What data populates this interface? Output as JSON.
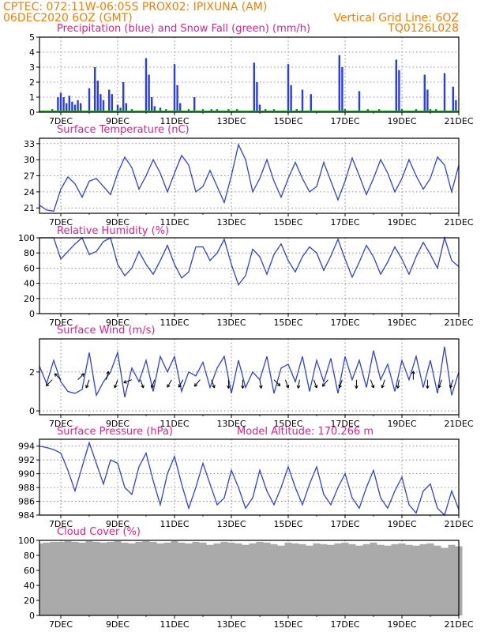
{
  "header": {
    "line1_left": "CPTEC:  072:11W-06:05S  PROX02: IPIXUNA (AM)",
    "line2_left": "06DEC2020 6OZ (GMT)",
    "line2_right": "Vertical Grid Line: 6OZ",
    "line3_right": "TQ0126L028"
  },
  "colors": {
    "header": "#f08000",
    "title": "#e0208a",
    "line": "#3040dd",
    "precip": "#2a3cf0",
    "snow": "#20b020",
    "cloud": "#aaaaaa",
    "arrow": "#000000"
  },
  "chart_data": [
    {
      "type": "bar",
      "title": "Precipitation (blue) and Snow Fall (green) (mm/h)",
      "ylim": [
        0,
        5
      ],
      "yticks": [
        0,
        1,
        2,
        3,
        4,
        5
      ],
      "x_start_day": 6.25,
      "x_end_day": 21.0,
      "xtick_labels": [
        "7DEC",
        "9DEC",
        "11DEC",
        "13DEC",
        "15DEC",
        "17DEC",
        "19DEC",
        "21DEC"
      ],
      "series": [
        {
          "name": "precipitation",
          "x_day": [
            6.7,
            6.9,
            7.0,
            7.1,
            7.2,
            7.3,
            7.4,
            7.5,
            7.6,
            7.7,
            8.0,
            8.2,
            8.3,
            8.4,
            8.5,
            8.7,
            8.8,
            9.0,
            9.1,
            9.2,
            9.3,
            9.5,
            9.7,
            10.0,
            10.1,
            10.2,
            10.3,
            10.5,
            10.7,
            11.0,
            11.1,
            11.2,
            11.5,
            11.7,
            12.0,
            12.1,
            12.3,
            12.5,
            12.7,
            12.9,
            13.0,
            13.2,
            13.4,
            13.8,
            13.9,
            14.0,
            14.2,
            14.5,
            14.8,
            15.0,
            15.1,
            15.3,
            15.5,
            15.8,
            16.0,
            16.2,
            16.5,
            16.8,
            16.9,
            17.0,
            17.2,
            17.5,
            17.8,
            18.0,
            18.2,
            18.4,
            18.8,
            18.9,
            19.0,
            19.3,
            19.5,
            19.8,
            19.9,
            20.0,
            20.2,
            20.5,
            20.8,
            20.9
          ],
          "values": [
            0.2,
            1.0,
            1.3,
            1.0,
            0.6,
            1.1,
            0.7,
            0.5,
            0.8,
            0.6,
            1.6,
            3.0,
            2.1,
            1.2,
            0.8,
            1.5,
            1.2,
            0.5,
            0.3,
            2.0,
            0.6,
            0.2,
            0.1,
            3.6,
            2.5,
            1.0,
            0.4,
            0.3,
            0.2,
            3.2,
            1.8,
            0.6,
            0.2,
            1.0,
            0.2,
            0.1,
            0.2,
            0.2,
            0.1,
            0.2,
            0.1,
            0.2,
            0.1,
            3.3,
            2.0,
            0.5,
            0.2,
            0.2,
            0.1,
            3.2,
            1.8,
            0.2,
            1.5,
            1.2,
            0.1,
            0.1,
            0.1,
            3.8,
            3.0,
            0.2,
            0.1,
            1.4,
            0.2,
            0.1,
            0.2,
            0.1,
            3.5,
            2.8,
            0.2,
            0.1,
            0.2,
            2.5,
            1.5,
            0.2,
            0.2,
            2.6,
            1.7,
            0.8
          ]
        },
        {
          "name": "snow fall",
          "values_constant": 0
        }
      ]
    },
    {
      "type": "line",
      "title": "Surface Temperature (nC)",
      "ylim": [
        20,
        34
      ],
      "yticks": [
        21,
        24,
        27,
        30,
        33
      ],
      "xtick_labels": [
        "7DEC",
        "9DEC",
        "11DEC",
        "13DEC",
        "15DEC",
        "17DEC",
        "19DEC",
        "21DEC"
      ],
      "x_day": [
        6.25,
        6.5,
        6.75,
        7.0,
        7.25,
        7.5,
        7.75,
        8.0,
        8.25,
        8.5,
        8.75,
        9.0,
        9.25,
        9.5,
        9.75,
        10.0,
        10.25,
        10.5,
        10.75,
        11.0,
        11.25,
        11.5,
        11.75,
        12.0,
        12.25,
        12.5,
        12.75,
        13.0,
        13.25,
        13.5,
        13.75,
        14.0,
        14.25,
        14.5,
        14.75,
        15.0,
        15.25,
        15.5,
        15.75,
        16.0,
        16.25,
        16.5,
        16.75,
        17.0,
        17.25,
        17.5,
        17.75,
        18.0,
        18.25,
        18.5,
        18.75,
        19.0,
        19.25,
        19.5,
        19.75,
        20.0,
        20.25,
        20.5,
        20.75,
        21.0
      ],
      "values": [
        21.5,
        20.6,
        20.4,
        24.5,
        26.8,
        25.5,
        23.0,
        26.0,
        26.5,
        25.0,
        23.5,
        27.5,
        30.5,
        28.5,
        24.5,
        27.0,
        30.0,
        27.5,
        24.0,
        27.5,
        30.8,
        29.0,
        24.0,
        25.0,
        28.0,
        25.0,
        22.0,
        27.0,
        32.8,
        30.0,
        24.0,
        26.5,
        30.0,
        26.0,
        23.0,
        26.5,
        29.5,
        26.5,
        24.0,
        25.0,
        29.5,
        26.0,
        22.5,
        26.0,
        30.3,
        27.0,
        23.5,
        26.5,
        30.0,
        27.5,
        24.0,
        26.5,
        30.0,
        27.0,
        24.5,
        26.5,
        30.5,
        29.0,
        24.0,
        29.0
      ]
    },
    {
      "type": "line",
      "title": "Relative Humidity (%)",
      "ylim": [
        0,
        100
      ],
      "yticks": [
        0,
        20,
        40,
        60,
        80,
        100
      ],
      "xtick_labels": [
        "7DEC",
        "9DEC",
        "11DEC",
        "13DEC",
        "15DEC",
        "17DEC",
        "19DEC",
        "21DEC"
      ],
      "x_day": [
        6.25,
        6.5,
        6.75,
        7.0,
        7.25,
        7.5,
        7.75,
        8.0,
        8.25,
        8.5,
        8.75,
        9.0,
        9.25,
        9.5,
        9.75,
        10.0,
        10.25,
        10.5,
        10.75,
        11.0,
        11.25,
        11.5,
        11.75,
        12.0,
        12.25,
        12.5,
        12.75,
        13.0,
        13.25,
        13.5,
        13.75,
        14.0,
        14.25,
        14.5,
        14.75,
        15.0,
        15.25,
        15.5,
        15.75,
        16.0,
        16.25,
        16.5,
        16.75,
        17.0,
        17.25,
        17.5,
        17.75,
        18.0,
        18.25,
        18.5,
        18.75,
        19.0,
        19.25,
        19.5,
        19.75,
        20.0,
        20.25,
        20.5,
        20.75,
        21.0
      ],
      "values": [
        100,
        100,
        100,
        72,
        82,
        92,
        100,
        78,
        82,
        95,
        100,
        65,
        50,
        60,
        82,
        65,
        52,
        70,
        90,
        65,
        47,
        55,
        88,
        88,
        70,
        80,
        98,
        65,
        38,
        50,
        85,
        75,
        52,
        78,
        92,
        70,
        55,
        75,
        88,
        80,
        57,
        76,
        98,
        72,
        48,
        68,
        90,
        75,
        52,
        68,
        88,
        72,
        52,
        75,
        94,
        78,
        60,
        100,
        70,
        62
      ]
    },
    {
      "type": "line",
      "title": "Surface Wind (m/s)",
      "ylim": [
        -0.2,
        3.7
      ],
      "yticks": [
        0,
        2
      ],
      "xtick_labels": [
        "7DEC",
        "9DEC",
        "11DEC",
        "13DEC",
        "15DEC",
        "17DEC",
        "19DEC",
        "21DEC"
      ],
      "x_day": [
        6.25,
        6.5,
        6.75,
        7.0,
        7.25,
        7.5,
        7.75,
        8.0,
        8.25,
        8.5,
        8.75,
        9.0,
        9.25,
        9.5,
        9.75,
        10.0,
        10.25,
        10.5,
        10.75,
        11.0,
        11.25,
        11.5,
        11.75,
        12.0,
        12.25,
        12.5,
        12.75,
        13.0,
        13.25,
        13.5,
        13.75,
        14.0,
        14.25,
        14.5,
        14.75,
        15.0,
        15.25,
        15.5,
        15.75,
        16.0,
        16.25,
        16.5,
        16.75,
        17.0,
        17.25,
        17.5,
        17.75,
        18.0,
        18.25,
        18.5,
        18.75,
        19.0,
        19.25,
        19.5,
        19.75,
        20.0,
        20.25,
        20.5,
        20.75,
        21.0
      ],
      "values": [
        2.3,
        1.4,
        2.6,
        1.5,
        1.0,
        0.9,
        1.1,
        3.0,
        0.8,
        1.5,
        2.0,
        3.0,
        0.7,
        2.2,
        1.5,
        2.6,
        1.0,
        2.8,
        2.0,
        2.8,
        1.0,
        2.0,
        1.8,
        2.5,
        1.2,
        2.2,
        2.8,
        0.9,
        2.6,
        1.2,
        2.0,
        1.6,
        2.8,
        0.9,
        2.2,
        2.4,
        1.5,
        2.8,
        1.0,
        2.6,
        1.5,
        2.7,
        0.9,
        2.8,
        1.6,
        2.6,
        1.2,
        3.1,
        1.6,
        2.4,
        1.0,
        2.6,
        1.6,
        2.8,
        1.2,
        2.6,
        0.9,
        3.3,
        0.8,
        2.0
      ],
      "arrows_x_day": [
        6.7,
        7.0,
        7.6,
        8.0,
        8.6,
        9.0,
        9.5,
        9.8,
        10.3,
        10.9,
        11.3,
        11.9,
        12.3,
        12.9,
        13.4,
        14.0,
        14.5,
        14.9,
        15.4,
        15.9,
        16.4,
        16.9,
        17.4,
        17.9,
        18.4,
        18.9,
        19.4,
        19.9,
        20.4,
        20.8
      ],
      "arrows_dir_deg": [
        225,
        315,
        45,
        200,
        15,
        200,
        250,
        160,
        200,
        210,
        210,
        220,
        160,
        180,
        180,
        170,
        135,
        160,
        190,
        160,
        220,
        200,
        180,
        160,
        200,
        190,
        0,
        180,
        200,
        200
      ]
    },
    {
      "type": "line",
      "title": "Surface Pressure (hPa)",
      "subtitle": "Model Altitude: 170.266 m",
      "ylim": [
        984,
        995
      ],
      "yticks": [
        984,
        986,
        988,
        990,
        992,
        994
      ],
      "xtick_labels": [
        "7DEC",
        "9DEC",
        "11DEC",
        "13DEC",
        "15DEC",
        "17DEC",
        "19DEC",
        "21DEC"
      ],
      "x_day": [
        6.25,
        6.5,
        6.75,
        7.0,
        7.25,
        7.5,
        7.75,
        8.0,
        8.25,
        8.5,
        8.75,
        9.0,
        9.25,
        9.5,
        9.75,
        10.0,
        10.25,
        10.5,
        10.75,
        11.0,
        11.25,
        11.5,
        11.75,
        12.0,
        12.25,
        12.5,
        12.75,
        13.0,
        13.25,
        13.5,
        13.75,
        14.0,
        14.25,
        14.5,
        14.75,
        15.0,
        15.25,
        15.5,
        15.75,
        16.0,
        16.25,
        16.5,
        16.75,
        17.0,
        17.25,
        17.5,
        17.75,
        18.0,
        18.25,
        18.5,
        18.75,
        19.0,
        19.25,
        19.5,
        19.75,
        20.0,
        20.25,
        20.5,
        20.75,
        21.0
      ],
      "values": [
        994.0,
        993.8,
        993.5,
        993.0,
        990.5,
        987.5,
        991.0,
        994.5,
        991.5,
        988.5,
        992.0,
        991.5,
        988.0,
        987.0,
        991.0,
        993.0,
        989.0,
        985.5,
        990.0,
        992.5,
        988.5,
        985.0,
        988.0,
        991.5,
        988.5,
        985.5,
        986.5,
        990.5,
        988.0,
        985.0,
        986.5,
        990.5,
        987.5,
        985.5,
        988.0,
        991.0,
        988.0,
        985.5,
        988.5,
        991.0,
        987.0,
        985.5,
        988.0,
        990.0,
        986.5,
        985.0,
        988.0,
        990.5,
        986.5,
        985.0,
        987.5,
        989.5,
        985.5,
        984.3,
        987.5,
        988.5,
        985.0,
        984.0,
        987.5,
        984.8
      ]
    },
    {
      "type": "bar",
      "title": "Cloud Cover (%)",
      "ylim": [
        0,
        100
      ],
      "yticks": [
        0,
        20,
        40,
        60,
        80,
        100
      ],
      "xtick_labels": [
        "7DEC",
        "9DEC",
        "11DEC",
        "13DEC",
        "15DEC",
        "17DEC",
        "19DEC",
        "21DEC"
      ],
      "x_day": [
        6.25,
        6.5,
        6.75,
        7.0,
        7.25,
        7.5,
        7.75,
        8.0,
        8.25,
        8.5,
        8.75,
        9.0,
        9.25,
        9.5,
        9.75,
        10.0,
        10.25,
        10.5,
        10.75,
        11.0,
        11.25,
        11.5,
        11.75,
        12.0,
        12.25,
        12.5,
        12.75,
        13.0,
        13.25,
        13.5,
        13.75,
        14.0,
        14.25,
        14.5,
        14.75,
        15.0,
        15.25,
        15.5,
        15.75,
        16.0,
        16.25,
        16.5,
        16.75,
        17.0,
        17.25,
        17.5,
        17.75,
        18.0,
        18.25,
        18.5,
        18.75,
        19.0,
        19.25,
        19.5,
        19.75,
        20.0,
        20.25,
        20.5,
        20.75,
        21.0
      ],
      "values": [
        96,
        97,
        98,
        98,
        99,
        98,
        97,
        99,
        98,
        97,
        98,
        99,
        97,
        96,
        98,
        99,
        98,
        96,
        97,
        99,
        97,
        96,
        98,
        97,
        94,
        96,
        98,
        97,
        96,
        94,
        96,
        98,
        97,
        95,
        93,
        97,
        96,
        95,
        93,
        96,
        95,
        94,
        96,
        97,
        95,
        93,
        95,
        97,
        94,
        93,
        95,
        96,
        94,
        93,
        95,
        96,
        93,
        90,
        94,
        92
      ]
    }
  ]
}
